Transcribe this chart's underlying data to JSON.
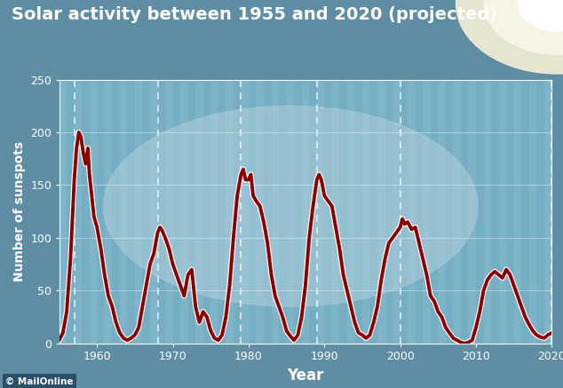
{
  "title": "Solar activity between 1955 and 2020 (projected)",
  "xlabel": "Year",
  "ylabel": "Number of sunspots",
  "xlim": [
    1955,
    2020
  ],
  "ylim": [
    0,
    250
  ],
  "yticks": [
    0,
    50,
    100,
    150,
    200,
    250
  ],
  "xticks": [
    1960,
    1970,
    1980,
    1990,
    2000,
    2010,
    2020
  ],
  "dashed_vlines": [
    1957,
    1968,
    1979,
    1989,
    2000,
    2020
  ],
  "bg_color": "#5f8da3",
  "plot_bg_color": "#7aafc5",
  "line_color": "#8b0000",
  "line_outline_color": "#ffffff",
  "title_color": "#ffffff",
  "label_color": "#ffffff",
  "tick_color": "#ffffff",
  "watermark": "© MailOnline",
  "sunspot_data": [
    [
      1955.0,
      3
    ],
    [
      1955.5,
      10
    ],
    [
      1956.0,
      30
    ],
    [
      1956.5,
      80
    ],
    [
      1957.0,
      155
    ],
    [
      1957.3,
      185
    ],
    [
      1957.6,
      200
    ],
    [
      1957.9,
      195
    ],
    [
      1958.2,
      180
    ],
    [
      1958.5,
      170
    ],
    [
      1958.8,
      185
    ],
    [
      1959.0,
      160
    ],
    [
      1959.3,
      140
    ],
    [
      1959.6,
      120
    ],
    [
      1960.0,
      110
    ],
    [
      1960.5,
      90
    ],
    [
      1961.0,
      65
    ],
    [
      1961.5,
      45
    ],
    [
      1962.0,
      35
    ],
    [
      1962.5,
      20
    ],
    [
      1963.0,
      10
    ],
    [
      1963.5,
      5
    ],
    [
      1964.0,
      3
    ],
    [
      1964.5,
      5
    ],
    [
      1965.0,
      8
    ],
    [
      1965.5,
      15
    ],
    [
      1966.0,
      35
    ],
    [
      1966.5,
      55
    ],
    [
      1967.0,
      75
    ],
    [
      1967.5,
      85
    ],
    [
      1968.0,
      105
    ],
    [
      1968.3,
      110
    ],
    [
      1968.6,
      107
    ],
    [
      1969.0,
      100
    ],
    [
      1969.5,
      90
    ],
    [
      1970.0,
      75
    ],
    [
      1970.5,
      65
    ],
    [
      1971.0,
      55
    ],
    [
      1971.5,
      45
    ],
    [
      1972.0,
      65
    ],
    [
      1972.5,
      70
    ],
    [
      1973.0,
      35
    ],
    [
      1973.5,
      20
    ],
    [
      1974.0,
      30
    ],
    [
      1974.5,
      25
    ],
    [
      1975.0,
      12
    ],
    [
      1975.5,
      5
    ],
    [
      1976.0,
      3
    ],
    [
      1976.5,
      8
    ],
    [
      1977.0,
      25
    ],
    [
      1977.5,
      55
    ],
    [
      1978.0,
      100
    ],
    [
      1978.5,
      140
    ],
    [
      1979.0,
      160
    ],
    [
      1979.3,
      165
    ],
    [
      1979.6,
      155
    ],
    [
      1980.0,
      155
    ],
    [
      1980.3,
      160
    ],
    [
      1980.6,
      140
    ],
    [
      1981.0,
      135
    ],
    [
      1981.5,
      130
    ],
    [
      1982.0,
      115
    ],
    [
      1982.5,
      95
    ],
    [
      1983.0,
      65
    ],
    [
      1983.5,
      45
    ],
    [
      1984.0,
      35
    ],
    [
      1984.5,
      25
    ],
    [
      1985.0,
      12
    ],
    [
      1985.5,
      7
    ],
    [
      1986.0,
      3
    ],
    [
      1986.5,
      8
    ],
    [
      1987.0,
      25
    ],
    [
      1987.5,
      55
    ],
    [
      1988.0,
      100
    ],
    [
      1988.5,
      130
    ],
    [
      1989.0,
      155
    ],
    [
      1989.3,
      160
    ],
    [
      1989.6,
      155
    ],
    [
      1990.0,
      140
    ],
    [
      1990.5,
      135
    ],
    [
      1991.0,
      130
    ],
    [
      1991.5,
      110
    ],
    [
      1992.0,
      90
    ],
    [
      1992.5,
      65
    ],
    [
      1993.0,
      50
    ],
    [
      1993.5,
      35
    ],
    [
      1994.0,
      20
    ],
    [
      1994.5,
      10
    ],
    [
      1995.0,
      8
    ],
    [
      1995.5,
      5
    ],
    [
      1996.0,
      8
    ],
    [
      1996.5,
      20
    ],
    [
      1997.0,
      35
    ],
    [
      1997.5,
      60
    ],
    [
      1998.0,
      80
    ],
    [
      1998.5,
      95
    ],
    [
      1999.0,
      100
    ],
    [
      1999.5,
      105
    ],
    [
      2000.0,
      110
    ],
    [
      2000.3,
      118
    ],
    [
      2000.6,
      113
    ],
    [
      2001.0,
      115
    ],
    [
      2001.5,
      108
    ],
    [
      2002.0,
      110
    ],
    [
      2002.5,
      95
    ],
    [
      2003.0,
      80
    ],
    [
      2003.5,
      65
    ],
    [
      2004.0,
      45
    ],
    [
      2004.5,
      40
    ],
    [
      2005.0,
      30
    ],
    [
      2005.5,
      25
    ],
    [
      2006.0,
      15
    ],
    [
      2006.5,
      10
    ],
    [
      2007.0,
      5
    ],
    [
      2007.5,
      3
    ],
    [
      2008.0,
      1
    ],
    [
      2008.5,
      0
    ],
    [
      2009.0,
      1
    ],
    [
      2009.5,
      3
    ],
    [
      2010.0,
      15
    ],
    [
      2010.5,
      30
    ],
    [
      2011.0,
      50
    ],
    [
      2011.5,
      60
    ],
    [
      2012.0,
      65
    ],
    [
      2012.5,
      68
    ],
    [
      2013.0,
      65
    ],
    [
      2013.5,
      62
    ],
    [
      2014.0,
      70
    ],
    [
      2014.5,
      65
    ],
    [
      2015.0,
      55
    ],
    [
      2015.5,
      45
    ],
    [
      2016.0,
      35
    ],
    [
      2016.5,
      25
    ],
    [
      2017.0,
      18
    ],
    [
      2017.5,
      12
    ],
    [
      2018.0,
      8
    ],
    [
      2018.5,
      6
    ],
    [
      2019.0,
      5
    ],
    [
      2019.5,
      8
    ],
    [
      2020.0,
      10
    ]
  ]
}
